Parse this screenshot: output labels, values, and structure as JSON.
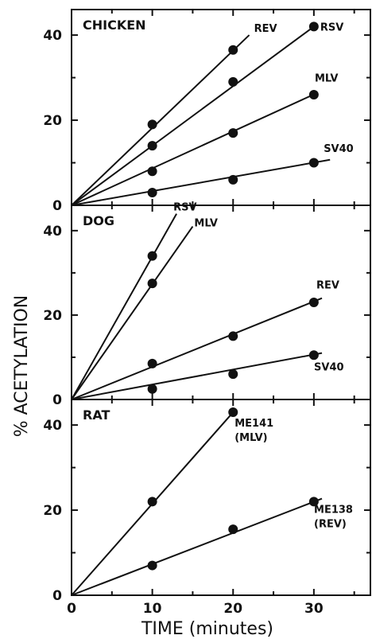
{
  "chart_data": {
    "type": "scatter",
    "xlabel": "TIME (minutes)",
    "ylabel": "% ACETYLATION",
    "xlim": [
      0,
      37
    ],
    "x_ticks": [
      "0",
      "10",
      "20",
      "30"
    ],
    "panels": [
      {
        "title": "CHICKEN",
        "ylim": [
          0,
          46
        ],
        "y_ticks": [
          "0",
          "20",
          "40"
        ],
        "series": [
          {
            "name": "REV",
            "points": [
              [
                10,
                19
              ],
              [
                20,
                36.5
              ]
            ],
            "line_end": [
              22,
              40
            ]
          },
          {
            "name": "RSV",
            "points": [
              [
                10,
                14
              ],
              [
                20,
                29
              ],
              [
                30,
                42
              ]
            ],
            "line_end": [
              30,
              42
            ]
          },
          {
            "name": "MLV",
            "points": [
              [
                10,
                8
              ],
              [
                20,
                17
              ],
              [
                30,
                26
              ]
            ],
            "line_end": [
              30.5,
              26.5
            ]
          },
          {
            "name": "SV40",
            "points": [
              [
                10,
                3
              ],
              [
                20,
                6
              ],
              [
                30,
                10
              ]
            ],
            "line_end": [
              32,
              10.7
            ]
          }
        ]
      },
      {
        "title": "DOG",
        "ylim": [
          0,
          46
        ],
        "y_ticks": [
          "0",
          "20",
          "40"
        ],
        "series": [
          {
            "name": "RSV",
            "points": [
              [
                10,
                34
              ]
            ],
            "line_end": [
              13,
              44
            ]
          },
          {
            "name": "MLV",
            "points": [
              [
                10,
                27.5
              ]
            ],
            "line_end": [
              15,
              41
            ]
          },
          {
            "name": "REV",
            "points": [
              [
                10,
                8.5
              ],
              [
                20,
                15
              ],
              [
                30,
                23
              ]
            ],
            "line_end": [
              31,
              24
            ]
          },
          {
            "name": "SV40",
            "points": [
              [
                10,
                2.5
              ],
              [
                20,
                6
              ],
              [
                30,
                10.5
              ]
            ],
            "line_end": [
              31,
              11
            ]
          }
        ]
      },
      {
        "title": "RAT",
        "ylim": [
          0,
          46
        ],
        "y_ticks": [
          "0",
          "20",
          "40"
        ],
        "series": [
          {
            "name": "ME141",
            "sublabel": "(MLV)",
            "points": [
              [
                10,
                22
              ],
              [
                20,
                43
              ]
            ],
            "line_end": [
              20,
              43
            ]
          },
          {
            "name": "ME138",
            "sublabel": "(REV)",
            "points": [
              [
                10,
                7
              ],
              [
                20,
                15.5
              ],
              [
                30,
                22
              ]
            ],
            "line_end": [
              31,
              22.7
            ]
          }
        ]
      }
    ]
  }
}
